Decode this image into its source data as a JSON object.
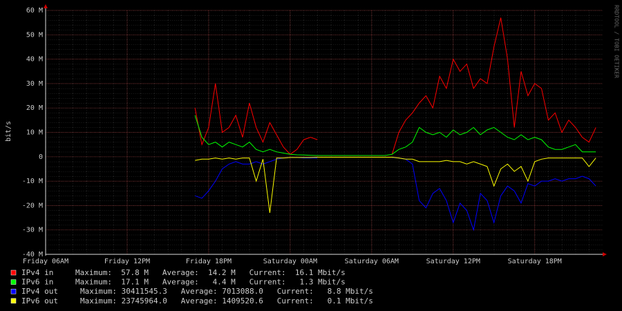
{
  "chart_data": {
    "type": "line",
    "y_label": "bit/s",
    "side_label": "RRDTOOL / TOBI OETIKER",
    "x": [
      11,
      11.5,
      12,
      12.5,
      13,
      13.5,
      14,
      14.5,
      15,
      15.5,
      16,
      16.5,
      17,
      17.5,
      18,
      18.5,
      19,
      19.5,
      20,
      20.5,
      21,
      21.5,
      22,
      22.5,
      23,
      23.5,
      24,
      24.5,
      25,
      25.5,
      26,
      26.5,
      27,
      27.5,
      28,
      28.5,
      29,
      29.5,
      30,
      30.5,
      31,
      31.5,
      32,
      32.5,
      33,
      33.5,
      34,
      34.5,
      35,
      35.5,
      36,
      36.5,
      37,
      37.5,
      38,
      38.5,
      39,
      39.5,
      40,
      40.5
    ],
    "xlim": [
      0,
      41
    ],
    "xticks": [
      {
        "value": 0,
        "label": "Friday 06AM"
      },
      {
        "value": 6,
        "label": "Friday 12PM"
      },
      {
        "value": 12,
        "label": "Friday 18PM"
      },
      {
        "value": 18,
        "label": "Saturday 00AM"
      },
      {
        "value": 24,
        "label": "Saturday 06AM"
      },
      {
        "value": 30,
        "label": "Saturday 12PM"
      },
      {
        "value": 36,
        "label": "Saturday 18PM"
      }
    ],
    "ylim": [
      -40,
      60
    ],
    "yticks": [
      {
        "value": -40,
        "label": "-40 M"
      },
      {
        "value": -30,
        "label": "-30 M"
      },
      {
        "value": -20,
        "label": "-20 M"
      },
      {
        "value": -10,
        "label": "-10 M"
      },
      0,
      {
        "value": 10,
        "label": "10 M"
      },
      {
        "value": 20,
        "label": "20 M"
      },
      {
        "value": 30,
        "label": "30 M"
      },
      {
        "value": 40,
        "label": "40 M"
      },
      {
        "value": 50,
        "label": "50 M"
      },
      {
        "value": 60,
        "label": "60 M"
      }
    ],
    "grid": true,
    "series": [
      {
        "name": "IPv4 in",
        "color": "#ff0000",
        "stats": "Maximum:  57.8 M   Average:  14.2 M   Current:  16.1 Mbit/s",
        "values": [
          20,
          5,
          12,
          30,
          10,
          12,
          17,
          8,
          22,
          12,
          6,
          14,
          9,
          4,
          1,
          3,
          7,
          8,
          7,
          null,
          null,
          null,
          null,
          null,
          null,
          null,
          null,
          null,
          null,
          1,
          10,
          15,
          18,
          22,
          25,
          20,
          33,
          28,
          40,
          35,
          38,
          28,
          32,
          30,
          45,
          57,
          40,
          12,
          35,
          25,
          30,
          28,
          15,
          18,
          10,
          15,
          12,
          8,
          6,
          12
        ]
      },
      {
        "name": "IPv6 in",
        "color": "#00ff00",
        "stats": "Maximum:  17.1 M   Average:   4.4 M   Current:   1.3 Mbit/s",
        "values": [
          17,
          8,
          5,
          6,
          4,
          6,
          5,
          4,
          6,
          3,
          2,
          3,
          2,
          1.5,
          1,
          0.8,
          0.7,
          0.6,
          0.5,
          0.5,
          0.5,
          0.5,
          0.5,
          0.5,
          0.5,
          0.5,
          0.5,
          0.5,
          0.5,
          1,
          3,
          4,
          6,
          12,
          10,
          9,
          10,
          8,
          11,
          9,
          10,
          12,
          9,
          11,
          12,
          10,
          8,
          7,
          9,
          7,
          8,
          7,
          4,
          3,
          3,
          4,
          5,
          2,
          2,
          2
        ]
      },
      {
        "name": "IPv4 out",
        "color": "#0000ff",
        "stats": "Maximum: 30411545.3   Average: 7013088.0   Current:   8.8 Mbit/s",
        "values": [
          -16,
          -17,
          -14,
          -10,
          -5,
          -3,
          -2,
          -3,
          -3,
          -2,
          -3,
          -2,
          -1,
          -0.5,
          -0.3,
          -0.3,
          -0.5,
          -0.5,
          -0.5,
          null,
          null,
          null,
          null,
          null,
          null,
          null,
          null,
          null,
          null,
          -0.3,
          -0.5,
          -1,
          -3,
          -18,
          -21,
          -15,
          -13,
          -18,
          -27,
          -19,
          -22,
          -30,
          -15,
          -18,
          -27,
          -16,
          -12,
          -14,
          -19,
          -11,
          -12,
          -10,
          -10,
          -9,
          -10,
          -9,
          -9,
          -8,
          -9,
          -12
        ]
      },
      {
        "name": "IPv6 out",
        "color": "#ffff00",
        "stats": "Maximum: 23745964.0   Average: 1409520.6   Current:   0.1 Mbit/s",
        "values": [
          -1.5,
          -1,
          -1,
          -0.5,
          -1,
          -0.5,
          -1,
          -0.5,
          -0.5,
          -10,
          -1,
          -23,
          -0.5,
          -0.5,
          -0.3,
          -0.3,
          -0.3,
          -0.3,
          -0.2,
          -0.2,
          -0.2,
          -0.2,
          -0.2,
          -0.2,
          -0.2,
          -0.2,
          -0.2,
          -0.2,
          -0.2,
          -0.2,
          -0.5,
          -1,
          -1,
          -2,
          -2,
          -2,
          -2,
          -1.5,
          -2,
          -2,
          -3,
          -2,
          -3,
          -4,
          -12,
          -5,
          -3,
          -6,
          -4,
          -10,
          -2,
          -1,
          -0.5,
          -0.5,
          -0.5,
          -0.5,
          -0.5,
          -0.5,
          -4,
          -0.5
        ]
      }
    ]
  }
}
